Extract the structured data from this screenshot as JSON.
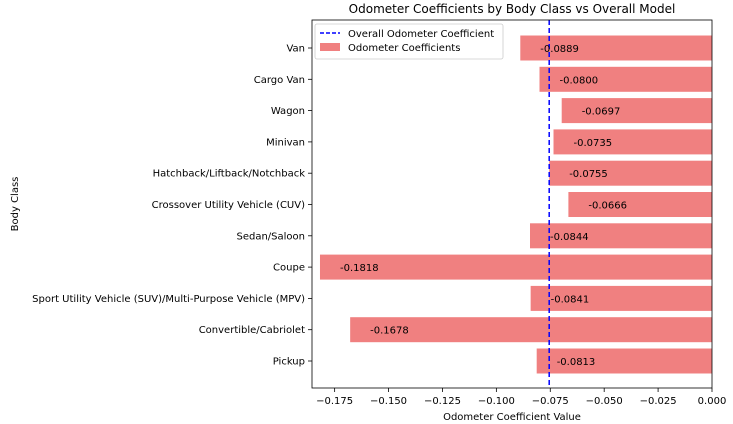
{
  "chart_data": {
    "type": "bar",
    "orientation": "horizontal",
    "title": "Odometer Coefficients by Body Class vs Overall Model",
    "xlabel": "Odometer Coefficient Value",
    "ylabel": "Body Class",
    "categories": [
      "Van",
      "Cargo Van",
      "Wagon",
      "Minivan",
      "Hatchback/Liftback/Notchback",
      "Crossover Utility Vehicle (CUV)",
      "Sedan/Saloon",
      "Coupe",
      "Sport Utility Vehicle (SUV)/Multi-Purpose Vehicle (MPV)",
      "Convertible/Cabriolet",
      "Pickup"
    ],
    "series": [
      {
        "name": "Odometer Coefficients",
        "values": [
          -0.0889,
          -0.08,
          -0.0697,
          -0.0735,
          -0.0755,
          -0.0666,
          -0.0844,
          -0.1818,
          -0.0841,
          -0.1678,
          -0.0813
        ],
        "labels": [
          "-0.0889",
          "-0.0800",
          "-0.0697",
          "-0.0735",
          "-0.0755",
          "-0.0666",
          "-0.0844",
          "-0.1818",
          "-0.0841",
          "-0.1678",
          "-0.0813"
        ],
        "color": "#f08080"
      }
    ],
    "reference_line": {
      "name": "Overall Odometer Coefficient",
      "value": -0.0755,
      "color": "#0000ff",
      "style": "dashed"
    },
    "xlim": [
      -0.1855,
      0.0
    ],
    "xticks": [
      -0.175,
      -0.15,
      -0.125,
      -0.1,
      -0.075,
      -0.05,
      -0.025,
      0.0
    ],
    "xtick_labels": [
      "−0.175",
      "−0.150",
      "−0.125",
      "−0.100",
      "−0.075",
      "−0.050",
      "−0.025",
      "0.000"
    ],
    "legend": {
      "position": "top-left"
    },
    "grid": false
  }
}
